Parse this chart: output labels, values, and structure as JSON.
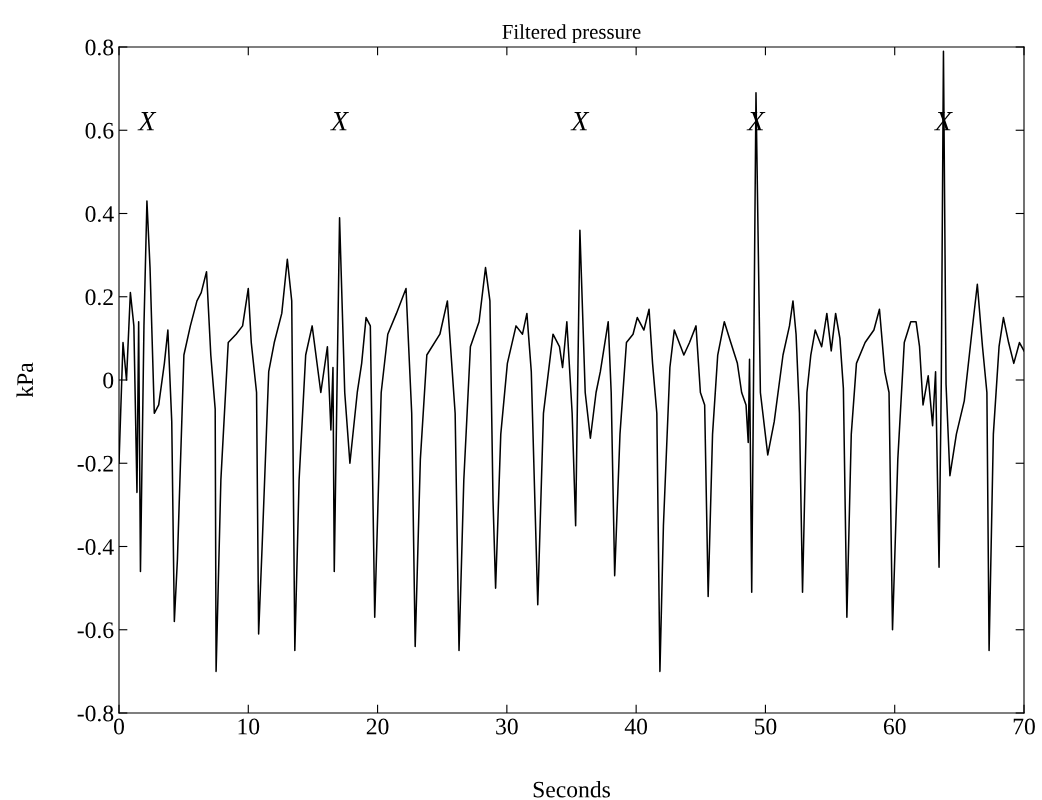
{
  "chart_data": {
    "type": "line",
    "title": "Filtered pressure",
    "xlabel": "Seconds",
    "ylabel": "kPa",
    "xlim": [
      0,
      70
    ],
    "xticks": [
      0,
      10,
      20,
      30,
      40,
      50,
      60,
      70
    ],
    "ylim": [
      -0.8,
      0.8
    ],
    "yticks": [
      -0.8,
      -0.6,
      -0.4,
      -0.2,
      0,
      0.2,
      0.4,
      0.6,
      0.8
    ],
    "grid": false,
    "marker": "none",
    "line_style": "solid",
    "annotations": [
      "X",
      "X",
      "X",
      "X",
      "X"
    ],
    "series": [
      {
        "color": "#000000",
        "x": [
          0,
          0.31,
          0.58,
          0.88,
          1.15,
          1.39,
          1.52,
          1.66,
          1.93,
          2.16,
          2.4,
          2.73,
          3.07,
          3.51,
          3.78,
          4.08,
          4.28,
          4.52,
          5.02,
          5.52,
          6.03,
          6.36,
          6.77,
          7.1,
          7.44,
          7.51,
          7.88,
          8.45,
          9.06,
          9.56,
          10.0,
          10.23,
          10.64,
          10.8,
          11.07,
          11.58,
          12.01,
          12.59,
          13.02,
          13.36,
          13.6,
          13.93,
          14.44,
          14.94,
          15.61,
          16.12,
          16.39,
          16.55,
          16.65,
          17.06,
          17.46,
          17.86,
          18.43,
          18.77,
          19.11,
          19.44,
          19.78,
          20.28,
          20.79,
          21.46,
          22.2,
          22.64,
          22.91,
          23.31,
          23.81,
          24.82,
          25.4,
          26.0,
          26.3,
          26.67,
          27.18,
          27.85,
          28.35,
          28.69,
          28.93,
          29.13,
          29.53,
          30.04,
          30.71,
          31.21,
          31.55,
          31.89,
          32.39,
          32.83,
          33.57,
          34.07,
          34.31,
          34.64,
          35.05,
          35.32,
          35.65,
          36.06,
          36.46,
          36.9,
          37.23,
          37.84,
          38.07,
          38.34,
          38.75,
          39.25,
          39.76,
          40.09,
          40.6,
          41.0,
          41.27,
          41.6,
          41.84,
          42.11,
          42.61,
          42.95,
          43.45,
          43.69,
          44.13,
          44.63,
          44.97,
          45.3,
          45.57,
          45.91,
          46.31,
          46.82,
          47.32,
          47.83,
          48.16,
          48.5,
          48.67,
          48.77,
          48.94,
          49.27,
          49.61,
          50.18,
          50.68,
          51.36,
          51.86,
          52.13,
          52.37,
          52.63,
          52.87,
          53.21,
          53.51,
          53.85,
          54.35,
          54.75,
          55.09,
          55.43,
          55.76,
          56.03,
          56.3,
          56.64,
          57.04,
          57.71,
          58.39,
          58.82,
          59.23,
          59.56,
          59.83,
          60.24,
          60.74,
          61.24,
          61.65,
          61.92,
          62.19,
          62.59,
          62.93,
          63.16,
          63.43,
          63.6,
          63.77,
          63.97,
          64.27,
          64.77,
          65.38,
          65.95,
          66.39,
          66.79,
          67.13,
          67.3,
          67.63,
          68.07,
          68.41,
          68.81,
          69.21,
          69.65,
          70
        ],
        "values": [
          -0.2,
          0.09,
          0.0,
          0.21,
          0.13,
          -0.27,
          0.14,
          -0.46,
          0.13,
          0.43,
          0.27,
          -0.08,
          -0.06,
          0.04,
          0.12,
          -0.1,
          -0.58,
          -0.43,
          0.06,
          0.13,
          0.19,
          0.21,
          0.26,
          0.06,
          -0.07,
          -0.7,
          -0.24,
          0.09,
          0.11,
          0.13,
          0.22,
          0.09,
          -0.03,
          -0.61,
          -0.4,
          0.02,
          0.09,
          0.16,
          0.29,
          0.19,
          -0.65,
          -0.24,
          0.06,
          0.13,
          -0.03,
          0.08,
          -0.12,
          0.03,
          -0.46,
          0.39,
          -0.03,
          -0.2,
          -0.03,
          0.04,
          0.15,
          0.13,
          -0.57,
          -0.03,
          0.11,
          0.16,
          0.22,
          -0.08,
          -0.64,
          -0.19,
          0.06,
          0.11,
          0.19,
          -0.08,
          -0.65,
          -0.24,
          0.08,
          0.14,
          0.27,
          0.19,
          -0.29,
          -0.5,
          -0.13,
          0.04,
          0.13,
          0.11,
          0.16,
          0.02,
          -0.54,
          -0.08,
          0.11,
          0.08,
          0.03,
          0.14,
          -0.08,
          -0.35,
          0.36,
          -0.03,
          -0.14,
          -0.03,
          0.02,
          0.14,
          -0.03,
          -0.47,
          -0.13,
          0.09,
          0.11,
          0.15,
          0.12,
          0.17,
          0.04,
          -0.08,
          -0.7,
          -0.35,
          0.03,
          0.12,
          0.08,
          0.06,
          0.09,
          0.13,
          -0.03,
          -0.06,
          -0.52,
          -0.13,
          0.06,
          0.14,
          0.09,
          0.04,
          -0.03,
          -0.06,
          -0.15,
          0.05,
          -0.51,
          0.69,
          -0.03,
          -0.18,
          -0.1,
          0.06,
          0.13,
          0.19,
          0.11,
          -0.08,
          -0.51,
          -0.03,
          0.06,
          0.12,
          0.08,
          0.16,
          0.07,
          0.16,
          0.1,
          -0.02,
          -0.57,
          -0.13,
          0.04,
          0.09,
          0.12,
          0.17,
          0.02,
          -0.03,
          -0.6,
          -0.19,
          0.09,
          0.14,
          0.14,
          0.08,
          -0.06,
          0.01,
          -0.11,
          0.02,
          -0.45,
          -0.01,
          0.79,
          -0.01,
          -0.23,
          -0.13,
          -0.05,
          0.11,
          0.23,
          0.08,
          -0.03,
          -0.65,
          -0.13,
          0.08,
          0.15,
          0.09,
          0.04,
          0.09,
          0.07
        ]
      }
    ]
  }
}
